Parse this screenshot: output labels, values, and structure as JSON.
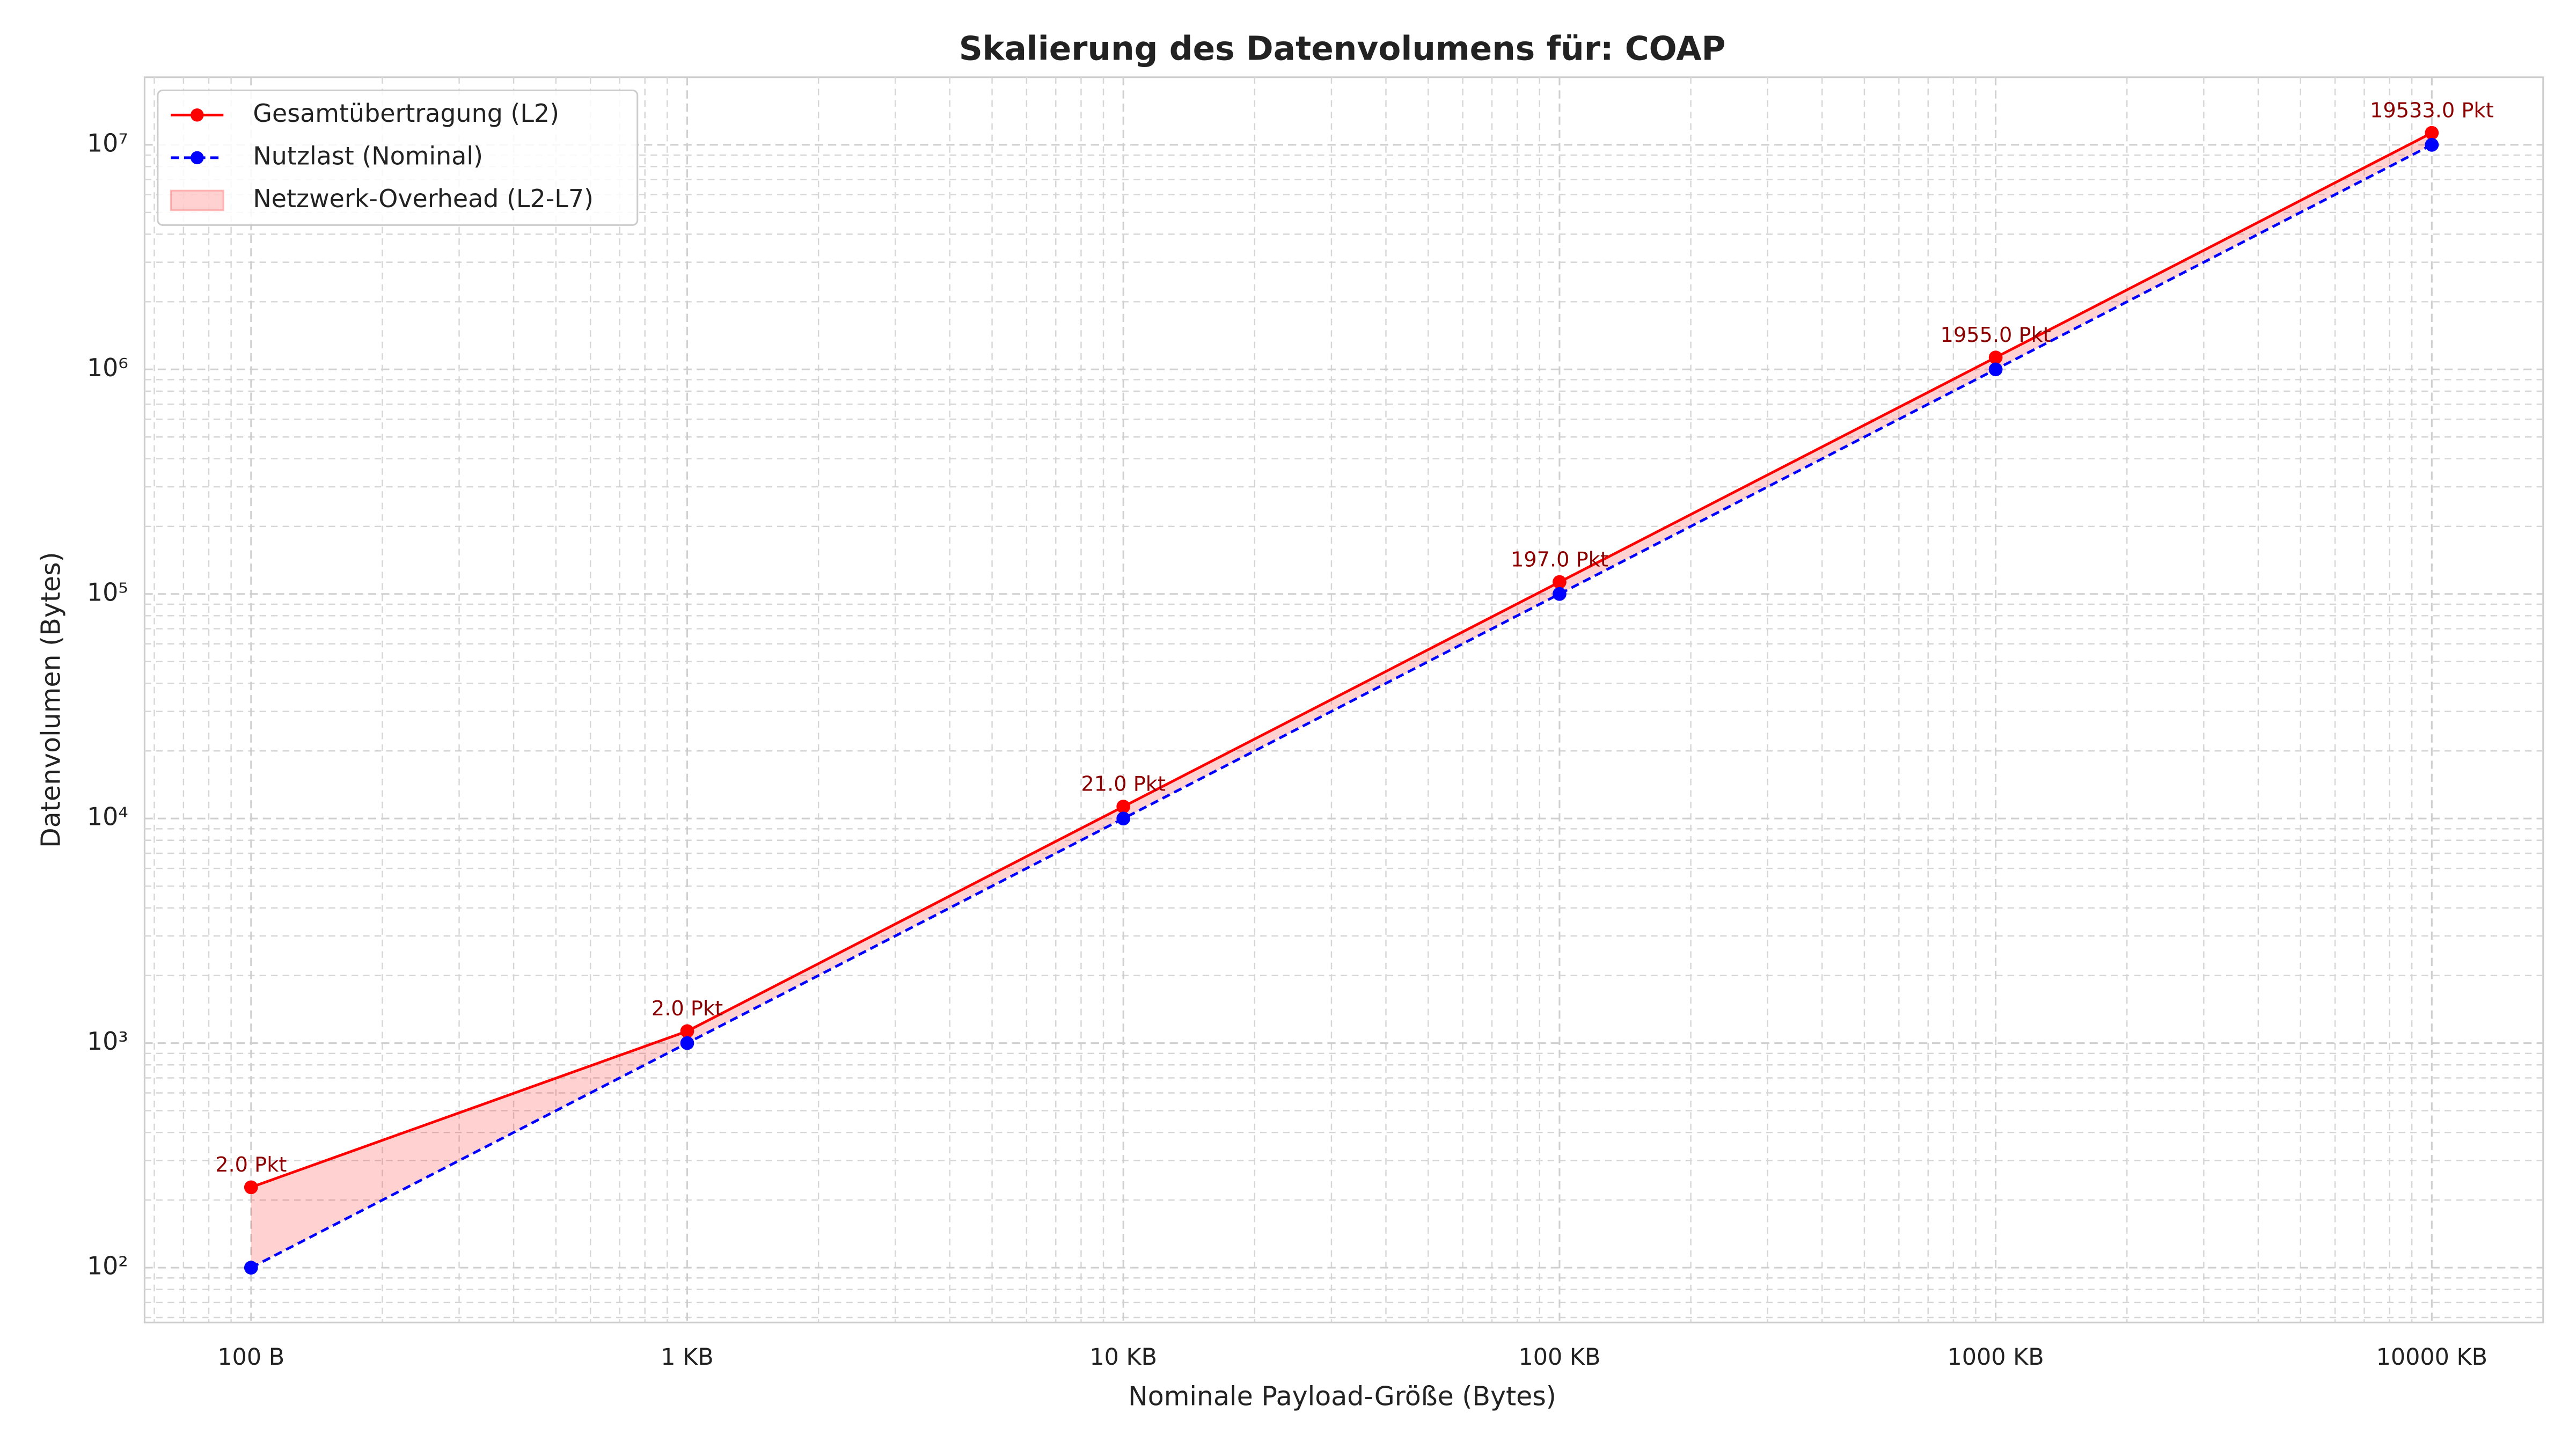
{
  "chart_data": {
    "type": "line",
    "title": "Skalierung des Datenvolumens für: COAP",
    "x_label": "Nominale Payload-Größe (Bytes)",
    "y_label": "Datenvolumen (Bytes)",
    "x": [
      100,
      1000,
      10000,
      100000,
      1000000,
      10000000
    ],
    "series": [
      {
        "name": "Gesamtübertragung (L2)",
        "color": "#ff0000",
        "dash": false,
        "values": [
          228,
          1130,
          11300,
          113000,
          1130000,
          11300000
        ],
        "annotations": [
          "2.0 Pkt",
          "2.0 Pkt",
          "21.0 Pkt",
          "197.0 Pkt",
          "1955.0 Pkt",
          "19533.0 Pkt"
        ]
      },
      {
        "name": "Nutzlast (Nominal)",
        "color": "#0000ff",
        "dash": true,
        "values": [
          100,
          1000,
          10000,
          100000,
          1000000,
          10000000
        ]
      }
    ],
    "fill_between": {
      "name": "Netzwerk-Overhead (L2-L7)",
      "color": "#ff0000",
      "opacity": 0.18
    },
    "annotation_color": "#8b0000",
    "xscale": "log",
    "yscale": "log",
    "xlim": [
      57,
      18000000
    ],
    "ylim": [
      57,
      20000000
    ],
    "xticks": [
      {
        "value": 100,
        "label": "100 B"
      },
      {
        "value": 1000,
        "label": "1 KB"
      },
      {
        "value": 10000,
        "label": "10 KB"
      },
      {
        "value": 100000,
        "label": "100 KB"
      },
      {
        "value": 1000000,
        "label": "1000 KB"
      },
      {
        "value": 10000000,
        "label": "10000 KB"
      }
    ],
    "yticks": [
      {
        "value": 100,
        "label": "10²"
      },
      {
        "value": 1000,
        "label": "10³"
      },
      {
        "value": 10000,
        "label": "10⁴"
      },
      {
        "value": 100000,
        "label": "10⁵"
      },
      {
        "value": 1000000,
        "label": "10⁶"
      },
      {
        "value": 10000000,
        "label": "10⁷"
      }
    ],
    "xminorticks": [
      60,
      70,
      80,
      90,
      200,
      300,
      400,
      500,
      600,
      700,
      800,
      900,
      2000,
      3000,
      4000,
      5000,
      6000,
      7000,
      8000,
      9000,
      20000,
      30000,
      40000,
      50000,
      60000,
      70000,
      80000,
      90000,
      200000,
      300000,
      400000,
      500000,
      600000,
      700000,
      800000,
      900000,
      2000000,
      3000000,
      4000000,
      5000000,
      6000000,
      7000000,
      8000000,
      9000000
    ],
    "yminorticks": [
      60,
      70,
      80,
      90,
      200,
      300,
      400,
      500,
      600,
      700,
      800,
      900,
      2000,
      3000,
      4000,
      5000,
      6000,
      7000,
      8000,
      9000,
      20000,
      30000,
      40000,
      50000,
      60000,
      70000,
      80000,
      90000,
      200000,
      300000,
      400000,
      500000,
      600000,
      700000,
      800000,
      900000,
      2000000,
      3000000,
      4000000,
      5000000,
      6000000,
      7000000,
      8000000,
      9000000
    ],
    "grid": true,
    "legend": "upper left"
  }
}
